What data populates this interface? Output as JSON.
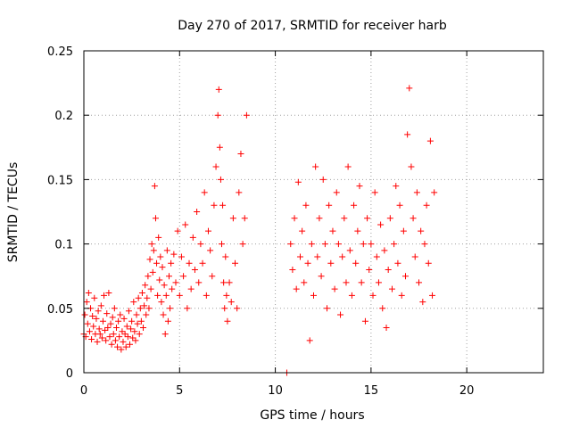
{
  "chart_data": {
    "type": "scatter",
    "title": "Day 270 of 2017, SRMTID for receiver harb",
    "xlabel": "GPS time / hours",
    "ylabel": "SRMTID / TECUs",
    "xlim": [
      0,
      24
    ],
    "ylim": [
      0,
      0.25
    ],
    "xticks": [
      0,
      5,
      10,
      15,
      20
    ],
    "xtick_labels": [
      "0",
      "5",
      "10",
      "15",
      "20"
    ],
    "yticks": [
      0,
      0.05,
      0.1,
      0.15,
      0.2,
      0.25
    ],
    "ytick_labels": [
      "0",
      "0.05",
      "0.1",
      "0.15",
      "0.2",
      "0.25"
    ],
    "grid": true,
    "marker": "plus",
    "color": "#ff0000",
    "series": [
      {
        "name": "SRMTID",
        "points": [
          [
            0.0,
            0.03
          ],
          [
            0.05,
            0.045
          ],
          [
            0.1,
            0.028
          ],
          [
            0.15,
            0.055
          ],
          [
            0.2,
            0.038
          ],
          [
            0.25,
            0.062
          ],
          [
            0.3,
            0.032
          ],
          [
            0.35,
            0.05
          ],
          [
            0.4,
            0.026
          ],
          [
            0.45,
            0.044
          ],
          [
            0.5,
            0.036
          ],
          [
            0.55,
            0.058
          ],
          [
            0.6,
            0.03
          ],
          [
            0.65,
            0.042
          ],
          [
            0.7,
            0.024
          ],
          [
            0.75,
            0.048
          ],
          [
            0.8,
            0.034
          ],
          [
            0.85,
            0.03
          ],
          [
            0.9,
            0.052
          ],
          [
            0.95,
            0.027
          ],
          [
            1.0,
            0.04
          ],
          [
            1.05,
            0.06
          ],
          [
            1.1,
            0.033
          ],
          [
            1.15,
            0.025
          ],
          [
            1.2,
            0.046
          ],
          [
            1.25,
            0.035
          ],
          [
            1.3,
            0.062
          ],
          [
            1.35,
            0.028
          ],
          [
            1.4,
            0.038
          ],
          [
            1.45,
            0.022
          ],
          [
            1.5,
            0.043
          ],
          [
            1.55,
            0.03
          ],
          [
            1.6,
            0.05
          ],
          [
            1.65,
            0.025
          ],
          [
            1.7,
            0.035
          ],
          [
            1.75,
            0.02
          ],
          [
            1.8,
            0.04
          ],
          [
            1.85,
            0.028
          ],
          [
            1.9,
            0.045
          ],
          [
            1.95,
            0.018
          ],
          [
            2.0,
            0.032
          ],
          [
            2.05,
            0.024
          ],
          [
            2.1,
            0.042
          ],
          [
            2.15,
            0.03
          ],
          [
            2.2,
            0.02
          ],
          [
            2.25,
            0.036
          ],
          [
            2.3,
            0.028
          ],
          [
            2.35,
            0.048
          ],
          [
            2.4,
            0.022
          ],
          [
            2.45,
            0.034
          ],
          [
            2.5,
            0.04
          ],
          [
            2.55,
            0.027
          ],
          [
            2.6,
            0.055
          ],
          [
            2.65,
            0.032
          ],
          [
            2.7,
            0.025
          ],
          [
            2.75,
            0.045
          ],
          [
            2.8,
            0.038
          ],
          [
            2.85,
            0.058
          ],
          [
            2.9,
            0.03
          ],
          [
            2.95,
            0.05
          ],
          [
            3.0,
            0.04
          ],
          [
            3.05,
            0.062
          ],
          [
            3.1,
            0.035
          ],
          [
            3.15,
            0.052
          ],
          [
            3.2,
            0.068
          ],
          [
            3.25,
            0.045
          ],
          [
            3.3,
            0.058
          ],
          [
            3.35,
            0.075
          ],
          [
            3.4,
            0.05
          ],
          [
            3.45,
            0.088
          ],
          [
            3.5,
            0.065
          ],
          [
            3.55,
            0.1
          ],
          [
            3.6,
            0.078
          ],
          [
            3.65,
            0.095
          ],
          [
            3.7,
            0.145
          ],
          [
            3.75,
            0.12
          ],
          [
            3.8,
            0.085
          ],
          [
            3.85,
            0.06
          ],
          [
            3.9,
            0.105
          ],
          [
            3.95,
            0.072
          ],
          [
            4.0,
            0.09
          ],
          [
            4.05,
            0.055
          ],
          [
            4.1,
            0.082
          ],
          [
            4.15,
            0.045
          ],
          [
            4.2,
            0.068
          ],
          [
            4.25,
            0.03
          ],
          [
            4.3,
            0.06
          ],
          [
            4.35,
            0.095
          ],
          [
            4.4,
            0.04
          ],
          [
            4.45,
            0.075
          ],
          [
            4.5,
            0.05
          ],
          [
            4.55,
            0.085
          ],
          [
            4.6,
            0.065
          ],
          [
            4.7,
            0.092
          ],
          [
            4.8,
            0.07
          ],
          [
            4.9,
            0.11
          ],
          [
            5.0,
            0.06
          ],
          [
            5.1,
            0.09
          ],
          [
            5.2,
            0.075
          ],
          [
            5.3,
            0.115
          ],
          [
            5.4,
            0.05
          ],
          [
            5.5,
            0.085
          ],
          [
            5.6,
            0.065
          ],
          [
            5.7,
            0.105
          ],
          [
            5.8,
            0.08
          ],
          [
            5.9,
            0.125
          ],
          [
            6.0,
            0.07
          ],
          [
            6.1,
            0.1
          ],
          [
            6.2,
            0.085
          ],
          [
            6.3,
            0.14
          ],
          [
            6.4,
            0.06
          ],
          [
            6.5,
            0.11
          ],
          [
            6.6,
            0.095
          ],
          [
            6.7,
            0.075
          ],
          [
            6.8,
            0.13
          ],
          [
            6.9,
            0.16
          ],
          [
            7.0,
            0.2
          ],
          [
            7.05,
            0.22
          ],
          [
            7.1,
            0.175
          ],
          [
            7.15,
            0.15
          ],
          [
            7.2,
            0.1
          ],
          [
            7.25,
            0.13
          ],
          [
            7.3,
            0.07
          ],
          [
            7.35,
            0.05
          ],
          [
            7.4,
            0.09
          ],
          [
            7.45,
            0.06
          ],
          [
            7.5,
            0.04
          ],
          [
            7.6,
            0.07
          ],
          [
            7.7,
            0.055
          ],
          [
            7.8,
            0.12
          ],
          [
            7.9,
            0.085
          ],
          [
            8.0,
            0.05
          ],
          [
            8.1,
            0.14
          ],
          [
            8.2,
            0.17
          ],
          [
            8.3,
            0.1
          ],
          [
            8.4,
            0.12
          ],
          [
            8.5,
            0.2
          ],
          [
            10.6,
            0.0
          ],
          [
            10.8,
            0.1
          ],
          [
            10.9,
            0.08
          ],
          [
            11.0,
            0.12
          ],
          [
            11.1,
            0.065
          ],
          [
            11.2,
            0.148
          ],
          [
            11.3,
            0.09
          ],
          [
            11.4,
            0.11
          ],
          [
            11.5,
            0.07
          ],
          [
            11.6,
            0.13
          ],
          [
            11.7,
            0.085
          ],
          [
            11.8,
            0.025
          ],
          [
            11.9,
            0.1
          ],
          [
            12.0,
            0.06
          ],
          [
            12.1,
            0.16
          ],
          [
            12.2,
            0.09
          ],
          [
            12.3,
            0.12
          ],
          [
            12.4,
            0.075
          ],
          [
            12.5,
            0.15
          ],
          [
            12.6,
            0.1
          ],
          [
            12.7,
            0.05
          ],
          [
            12.8,
            0.13
          ],
          [
            12.9,
            0.085
          ],
          [
            13.0,
            0.11
          ],
          [
            13.1,
            0.065
          ],
          [
            13.2,
            0.14
          ],
          [
            13.3,
            0.1
          ],
          [
            13.4,
            0.045
          ],
          [
            13.5,
            0.09
          ],
          [
            13.6,
            0.12
          ],
          [
            13.7,
            0.07
          ],
          [
            13.8,
            0.16
          ],
          [
            13.9,
            0.095
          ],
          [
            14.0,
            0.06
          ],
          [
            14.1,
            0.13
          ],
          [
            14.2,
            0.085
          ],
          [
            14.3,
            0.11
          ],
          [
            14.4,
            0.145
          ],
          [
            14.5,
            0.07
          ],
          [
            14.6,
            0.1
          ],
          [
            14.7,
            0.04
          ],
          [
            14.8,
            0.12
          ],
          [
            14.9,
            0.08
          ],
          [
            15.0,
            0.1
          ],
          [
            15.1,
            0.06
          ],
          [
            15.2,
            0.14
          ],
          [
            15.3,
            0.09
          ],
          [
            15.4,
            0.07
          ],
          [
            15.5,
            0.115
          ],
          [
            15.6,
            0.05
          ],
          [
            15.7,
            0.095
          ],
          [
            15.8,
            0.035
          ],
          [
            15.9,
            0.08
          ],
          [
            16.0,
            0.12
          ],
          [
            16.1,
            0.065
          ],
          [
            16.2,
            0.1
          ],
          [
            16.3,
            0.145
          ],
          [
            16.4,
            0.085
          ],
          [
            16.5,
            0.13
          ],
          [
            16.6,
            0.06
          ],
          [
            16.7,
            0.11
          ],
          [
            16.8,
            0.075
          ],
          [
            16.9,
            0.185
          ],
          [
            17.0,
            0.221
          ],
          [
            17.1,
            0.16
          ],
          [
            17.2,
            0.12
          ],
          [
            17.3,
            0.09
          ],
          [
            17.4,
            0.14
          ],
          [
            17.5,
            0.07
          ],
          [
            17.6,
            0.11
          ],
          [
            17.7,
            0.055
          ],
          [
            17.8,
            0.1
          ],
          [
            17.9,
            0.13
          ],
          [
            18.0,
            0.085
          ],
          [
            18.1,
            0.18
          ],
          [
            18.2,
            0.06
          ],
          [
            18.3,
            0.14
          ]
        ]
      }
    ]
  }
}
